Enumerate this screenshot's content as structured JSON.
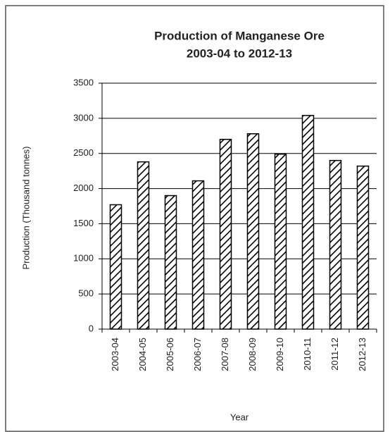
{
  "chart_data": {
    "type": "bar",
    "title": "Production of Manganese Ore",
    "subtitle": "2003-04 to 2012-13",
    "x_label": "Year",
    "y_label": "Production (Thousand tonnes)",
    "categories": [
      "2003-04",
      "2004-05",
      "2005-06",
      "2006-07",
      "2007-08",
      "2008-09",
      "2009-10",
      "2010-11",
      "2011-12",
      "2012-13"
    ],
    "values": [
      1770,
      2380,
      1900,
      2110,
      2700,
      2780,
      2490,
      3040,
      2400,
      2320
    ],
    "color": "#000000",
    "ylim": [
      0,
      3500
    ],
    "yticks": [
      0,
      500,
      1000,
      1500,
      2000,
      2500,
      3000,
      3500
    ],
    "grid": true
  }
}
